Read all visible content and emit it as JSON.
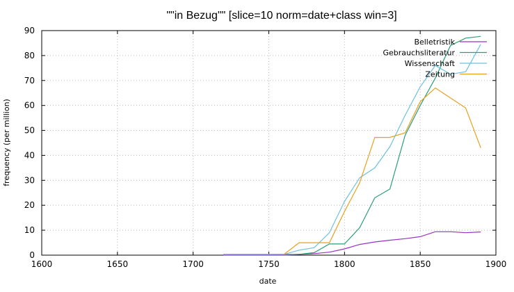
{
  "chart_data": {
    "type": "line",
    "title": "\"\"in Bezug\"\" [slice=10 norm=date+class win=3]",
    "xlabel": "date",
    "ylabel": "frequency (per million)",
    "xlim": [
      1600,
      1900
    ],
    "ylim": [
      0,
      90
    ],
    "xticks": [
      1600,
      1650,
      1700,
      1750,
      1800,
      1850,
      1900
    ],
    "yticks": [
      0,
      10,
      20,
      30,
      40,
      50,
      60,
      70,
      80,
      90
    ],
    "grid": true,
    "legend_position": "top-right",
    "series": [
      {
        "name": "Belletristik",
        "color": "#9b30c8",
        "x": [
          1720,
          1730,
          1740,
          1750,
          1760,
          1770,
          1780,
          1790,
          1800,
          1810,
          1820,
          1830,
          1840,
          1850,
          1860,
          1870,
          1880,
          1890
        ],
        "y": [
          0,
          0,
          0,
          0,
          0,
          0.3,
          0.6,
          1.2,
          2.5,
          4.3,
          5.3,
          6.0,
          6.6,
          7.4,
          9.4,
          9.4,
          9.0,
          9.3
        ]
      },
      {
        "name": "Gebrauchsliteratur",
        "color": "#2a9d7c",
        "x": [
          1720,
          1730,
          1740,
          1750,
          1760,
          1770,
          1780,
          1790,
          1800,
          1810,
          1820,
          1830,
          1840,
          1850,
          1860,
          1870,
          1880,
          1890
        ],
        "y": [
          0.3,
          0.3,
          0.3,
          0.3,
          0.3,
          0.3,
          1.0,
          4.5,
          4.5,
          11,
          23,
          26.5,
          48,
          60,
          71,
          84,
          87,
          87.7
        ]
      },
      {
        "name": "Wissenschaft",
        "color": "#6cc0e0",
        "x": [
          1720,
          1730,
          1740,
          1750,
          1760,
          1770,
          1780,
          1790,
          1800,
          1810,
          1820,
          1830,
          1840,
          1850,
          1860,
          1870,
          1880,
          1890
        ],
        "y": [
          0.3,
          0.3,
          0.3,
          0.3,
          0.3,
          2.0,
          3.0,
          9.0,
          21.5,
          31,
          35,
          43.5,
          56,
          67.5,
          76,
          72.5,
          73.5,
          84.5
        ]
      },
      {
        "name": "Zeitung",
        "color": "#e8a020",
        "x": [
          1760,
          1770,
          1780,
          1790,
          1800,
          1810,
          1820,
          1830,
          1840,
          1850,
          1860,
          1870,
          1880,
          1890
        ],
        "y": [
          0.3,
          5.0,
          5.0,
          5.0,
          17.5,
          29,
          47.2,
          47.2,
          49,
          61.5,
          67,
          63,
          59,
          43
        ]
      }
    ]
  }
}
